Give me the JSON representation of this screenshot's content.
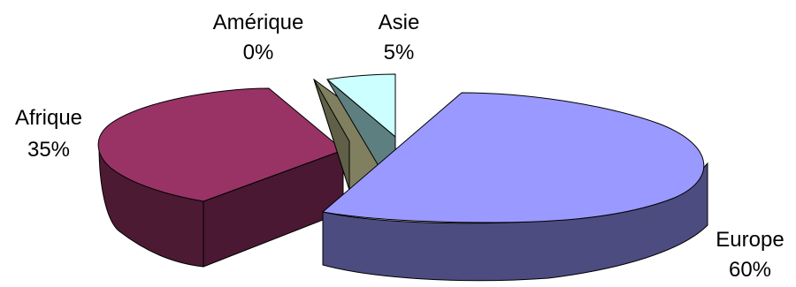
{
  "chart_data": {
    "type": "pie",
    "title": "",
    "slices": [
      {
        "label": "Europe",
        "value": 60,
        "display": "60%",
        "color": "#9999ff",
        "side_color": "#4c4c80"
      },
      {
        "label": "Afrique",
        "value": 35,
        "display": "35%",
        "color": "#993366",
        "side_color": "#4d1a33"
      },
      {
        "label": "Amérique",
        "value": 0,
        "display": "0%",
        "color": "#808060",
        "side_color": "#606048"
      },
      {
        "label": "Asie",
        "value": 5,
        "display": "5%",
        "color": "#ccffff",
        "side_color": "#80a0a0"
      }
    ],
    "legend": "none",
    "style": "3d-exploded"
  }
}
